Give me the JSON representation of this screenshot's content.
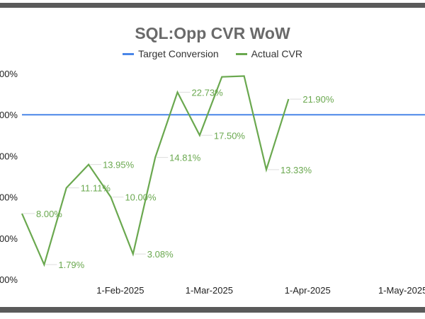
{
  "chart_data": {
    "type": "line",
    "title": "SQL:Opp CVR WoW",
    "legend_position": "top",
    "xlim": [
      "2025-01-01",
      "2025-05-08"
    ],
    "ylim": [
      0,
      25
    ],
    "y_tick_labels": [
      "00%",
      "00%",
      "00%",
      "00%",
      "00%",
      "00%"
    ],
    "y_tick_values": [
      0,
      5,
      10,
      15,
      20,
      25
    ],
    "x_ticks": [
      {
        "date": "2025-02-01",
        "label": "1-Feb-2025"
      },
      {
        "date": "2025-03-01",
        "label": "1-Mar-2025"
      },
      {
        "date": "2025-04-01",
        "label": "1-Apr-2025"
      },
      {
        "date": "2025-05-01",
        "label": "1-May-2025"
      }
    ],
    "grid": false,
    "series": [
      {
        "name": "Target Conversion",
        "color": "#4a86e8",
        "points": [
          {
            "x": "2025-01-01",
            "y": 20
          },
          {
            "x": "2025-05-08",
            "y": 20
          }
        ]
      },
      {
        "name": "Actual CVR",
        "color": "#6aa84f",
        "points": [
          {
            "x": "2025-01-01",
            "y": 8.0,
            "label": "8.00%"
          },
          {
            "x": "2025-01-08",
            "y": 1.79,
            "label": "1.79%"
          },
          {
            "x": "2025-01-15",
            "y": 11.11,
            "label": "11.11%"
          },
          {
            "x": "2025-01-22",
            "y": 13.95,
            "label": "13.95%"
          },
          {
            "x": "2025-01-29",
            "y": 10.0,
            "label": "10.00%"
          },
          {
            "x": "2025-02-05",
            "y": 3.08,
            "label": "3.08%"
          },
          {
            "x": "2025-02-12",
            "y": 14.81,
            "label": "14.81%"
          },
          {
            "x": "2025-02-19",
            "y": 22.73,
            "label": "22.73%"
          },
          {
            "x": "2025-02-26",
            "y": 17.5,
            "label": "17.50%"
          },
          {
            "x": "2025-03-05",
            "y": 24.6
          },
          {
            "x": "2025-03-12",
            "y": 24.7
          },
          {
            "x": "2025-03-19",
            "y": 13.33,
            "label": "13.33%"
          },
          {
            "x": "2025-03-26",
            "y": 21.9,
            "label": "21.90%"
          }
        ]
      }
    ]
  }
}
